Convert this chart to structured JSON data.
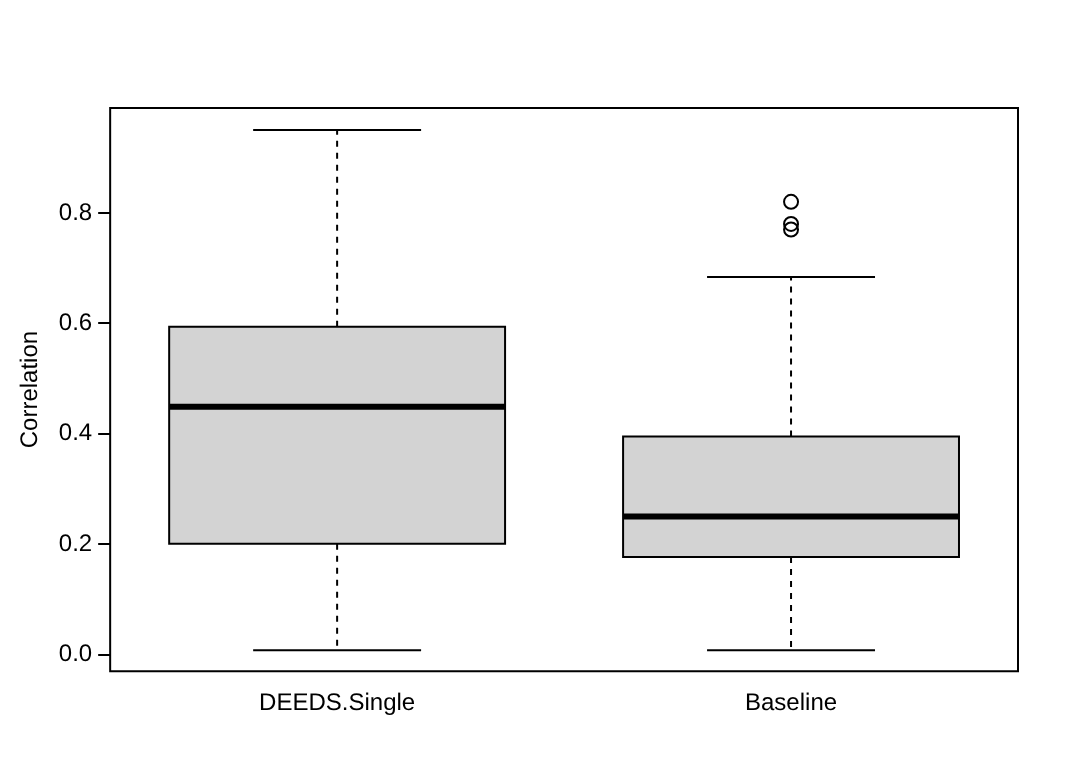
{
  "chart_data": {
    "type": "box",
    "ylabel": "Correlation",
    "categories": [
      "DEEDS.Single",
      "Baseline"
    ],
    "boxes": [
      {
        "low": 0.008,
        "q1": 0.201,
        "median": 0.449,
        "q3": 0.594,
        "high": 0.95
      },
      {
        "low": 0.008,
        "q1": 0.177,
        "median": 0.25,
        "q3": 0.395,
        "high": 0.684,
        "outliers": [
          0.82,
          0.78,
          0.77
        ]
      }
    ],
    "color": "#d3d3d3",
    "ylim": [
      -0.03,
      0.99
    ],
    "yticks": [
      {
        "value": 0,
        "label": "0.0"
      },
      0.2,
      0.4,
      0.6,
      0.8
    ],
    "grid": false,
    "legend": false
  }
}
